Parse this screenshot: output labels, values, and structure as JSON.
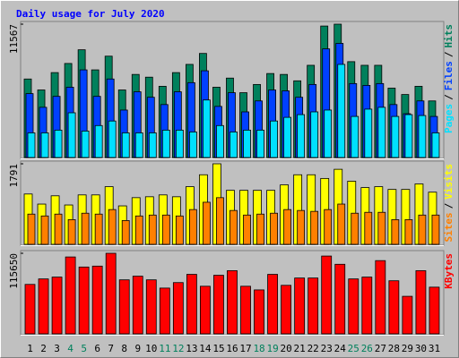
{
  "chart_data": [
    {
      "type": "bar",
      "title": "Daily usage for July 2020",
      "title_color": "#0000ff",
      "ylim": [
        0,
        11567
      ],
      "yticks": [
        11567
      ],
      "legend_separator": "/",
      "series": [
        {
          "name": "Hits",
          "color": "#00805c",
          "values": [
            6811,
            5861,
            7366,
            8158,
            9346,
            7603,
            8791,
            5861,
            7207,
            6970,
            6178,
            7366,
            8078,
            9029,
            6098,
            6890,
            5623,
            6336,
            7286,
            7207,
            6653,
            7999,
            11405,
            11567,
            8316,
            7999,
            7999,
            6019,
            5465,
            6178,
            4910
          ]
        },
        {
          "name": "Files",
          "color": "#0040ff",
          "values": [
            5544,
            4356,
            5306,
            6098,
            7603,
            5306,
            6811,
            4118,
            5702,
            5227,
            4594,
            5702,
            6494,
            7524,
            4435,
            5623,
            3960,
            4910,
            5861,
            5782,
            5227,
            6336,
            9425,
            9900,
            6415,
            6257,
            6415,
            4594,
            3802,
            4910,
            3564
          ]
        },
        {
          "name": "Pages",
          "color": "#00e0ff",
          "values": [
            2138,
            2138,
            2376,
            3881,
            2297,
            2772,
            3168,
            2138,
            2138,
            2138,
            2376,
            2376,
            2218,
            4990,
            2772,
            2218,
            2376,
            2376,
            3168,
            3485,
            3722,
            3960,
            4118,
            8078,
            3564,
            4198,
            4356,
            3564,
            3722,
            3643,
            2138
          ]
        }
      ]
    },
    {
      "type": "bar",
      "ylim": [
        0,
        1791
      ],
      "yticks": [
        1791
      ],
      "legend_separator": "/",
      "series": [
        {
          "name": "Visits",
          "color": "#ffff00",
          "values": [
            1119,
            895,
            1079,
            875,
            1099,
            1099,
            1282,
            855,
            1038,
            1058,
            1099,
            1058,
            1282,
            1547,
            1791,
            1201,
            1201,
            1201,
            1201,
            1323,
            1547,
            1547,
            1465,
            1669,
            1404,
            1262,
            1282,
            1221,
            1221,
            1343,
            1160
          ]
        },
        {
          "name": "Sites",
          "color": "#ff8000",
          "values": [
            672,
            631,
            672,
            549,
            692,
            672,
            773,
            529,
            631,
            651,
            651,
            631,
            773,
            936,
            1038,
            753,
            651,
            672,
            692,
            773,
            753,
            733,
            773,
            895,
            692,
            712,
            712,
            549,
            549,
            651,
            651
          ]
        }
      ]
    },
    {
      "type": "bar",
      "ylim": [
        0,
        115650
      ],
      "yticks": [
        115650
      ],
      "categories": [
        "1",
        "2",
        "3",
        "4",
        "5",
        "6",
        "7",
        "8",
        "9",
        "10",
        "11",
        "12",
        "13",
        "14",
        "15",
        "16",
        "17",
        "18",
        "19",
        "20",
        "21",
        "22",
        "23",
        "24",
        "25",
        "26",
        "27",
        "28",
        "29",
        "30",
        "31"
      ],
      "category_colors": [
        "#000000",
        "#000000",
        "#000000",
        "#00805c",
        "#00805c",
        "#000000",
        "#000000",
        "#000000",
        "#000000",
        "#000000",
        "#00805c",
        "#00805c",
        "#000000",
        "#000000",
        "#000000",
        "#000000",
        "#000000",
        "#00805c",
        "#00805c",
        "#000000",
        "#000000",
        "#000000",
        "#000000",
        "#000000",
        "#00805c",
        "#00805c",
        "#000000",
        "#000000",
        "#000000",
        "#000000",
        "#000000"
      ],
      "series": [
        {
          "name": "KBytes",
          "color": "#ff0000",
          "values": [
            70956,
            78840,
            81468,
            110376,
            95922,
            97236,
            115650,
            77526,
            82782,
            77526,
            65700,
            73584,
            85410,
            68328,
            84096,
            90666,
            68328,
            63072,
            85410,
            69642,
            80154,
            80154,
            111690,
            99864,
            78840,
            81468,
            105120,
            76212,
            53874,
            90666,
            67014
          ]
        }
      ]
    }
  ]
}
